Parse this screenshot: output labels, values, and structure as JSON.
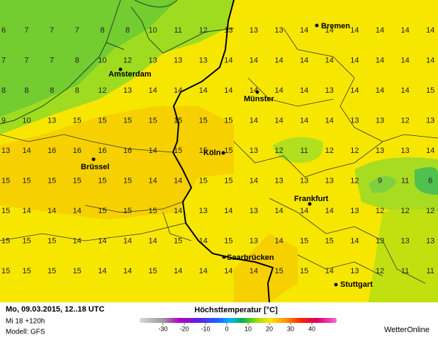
{
  "map": {
    "grid_values": [
      [
        6,
        7,
        7,
        7,
        8,
        8,
        10,
        11,
        12,
        13,
        13,
        13,
        14,
        14,
        14,
        14,
        14,
        14
      ],
      [
        7,
        7,
        7,
        8,
        10,
        12,
        13,
        13,
        13,
        14,
        14,
        14,
        14,
        14,
        14,
        14,
        14,
        14
      ],
      [
        8,
        8,
        8,
        8,
        12,
        13,
        14,
        14,
        14,
        14,
        14,
        14,
        14,
        13,
        14,
        14,
        14,
        15
      ],
      [
        9,
        10,
        13,
        15,
        15,
        15,
        15,
        15,
        15,
        15,
        14,
        14,
        14,
        14,
        13,
        13,
        12,
        13
      ],
      [
        13,
        14,
        16,
        16,
        16,
        16,
        14,
        15,
        15,
        15,
        13,
        12,
        11,
        12,
        12,
        13,
        13,
        14
      ],
      [
        15,
        15,
        15,
        15,
        15,
        15,
        14,
        14,
        15,
        15,
        14,
        13,
        13,
        13,
        12,
        9,
        11,
        6
      ],
      [
        15,
        14,
        14,
        14,
        15,
        15,
        15,
        14,
        13,
        14,
        13,
        14,
        14,
        14,
        13,
        12,
        12,
        12
      ],
      [
        15,
        15,
        15,
        14,
        14,
        14,
        14,
        15,
        14,
        15,
        13,
        14,
        15,
        15,
        14,
        13,
        13,
        13
      ],
      [
        15,
        15,
        15,
        15,
        14,
        14,
        15,
        14,
        14,
        14,
        14,
        15,
        15,
        14,
        13,
        12,
        11,
        11
      ]
    ],
    "cities": [
      "Bremen",
      "Amsterdam",
      "Münster",
      "Brüssel",
      "Köln",
      "Frankfurt",
      "Saarbrücken",
      "Stuttgart"
    ]
  },
  "footer": {
    "date": "Mo, 09.03.2015, 12..18 UTC",
    "run": "Mi 18 +120h",
    "model": "Modell: GFS",
    "title": "Höchsttemperatur [°C]",
    "scale_ticks": [
      -30,
      -20,
      -10,
      0,
      10,
      20,
      30,
      40
    ],
    "brand": "WetterOnline"
  }
}
